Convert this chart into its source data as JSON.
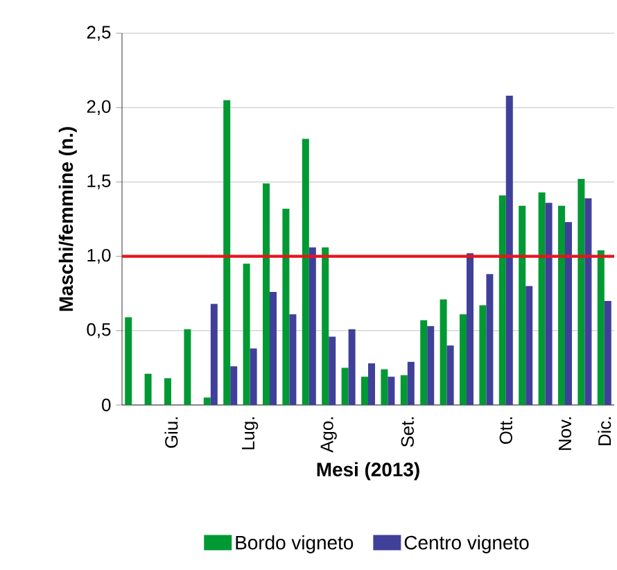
{
  "chart_data": {
    "type": "bar",
    "xlabel": "Mesi (2013)",
    "ylabel": "Maschi/femmine (n.)",
    "categories": [
      null,
      null,
      "Giu.",
      null,
      null,
      null,
      "Lug.",
      null,
      null,
      null,
      "Ago.",
      null,
      null,
      null,
      "Set.",
      null,
      null,
      null,
      null,
      "Ott.",
      null,
      null,
      "Nov.",
      null,
      "Dic."
    ],
    "ylim": [
      0,
      2.5
    ],
    "yticks": [
      0,
      {
        "value": 0.5,
        "label": "0,5"
      },
      {
        "value": 1,
        "label": "1,0"
      },
      {
        "value": 1.5,
        "label": "1,5"
      },
      {
        "value": 2,
        "label": "2,0"
      },
      {
        "value": 2.5,
        "label": "2,5"
      }
    ],
    "grid": "y",
    "legend": "bottom",
    "series": [
      {
        "name": "Bordo vigneto",
        "color": "#009933",
        "values": [
          0.59,
          0.21,
          0.18,
          0.51,
          0.05,
          2.05,
          0.95,
          1.49,
          1.32,
          1.79,
          1.06,
          0.25,
          0.19,
          0.24,
          0.2,
          0.57,
          0.71,
          0.61,
          0.67,
          1.41,
          1.34,
          1.43,
          1.34,
          1.52,
          1.04
        ]
      },
      {
        "name": "Centro vigneto",
        "color": "#40409a",
        "values": [
          null,
          null,
          null,
          null,
          0.68,
          0.26,
          0.38,
          0.76,
          0.61,
          1.06,
          0.46,
          0.51,
          0.28,
          0.19,
          0.29,
          0.53,
          0.4,
          1.02,
          0.88,
          2.08,
          0.8,
          1.36,
          1.23,
          1.39,
          0.7
        ]
      }
    ],
    "ref_lines": [
      {
        "axis": "y",
        "value": 1,
        "color": "#e8141b"
      }
    ]
  }
}
